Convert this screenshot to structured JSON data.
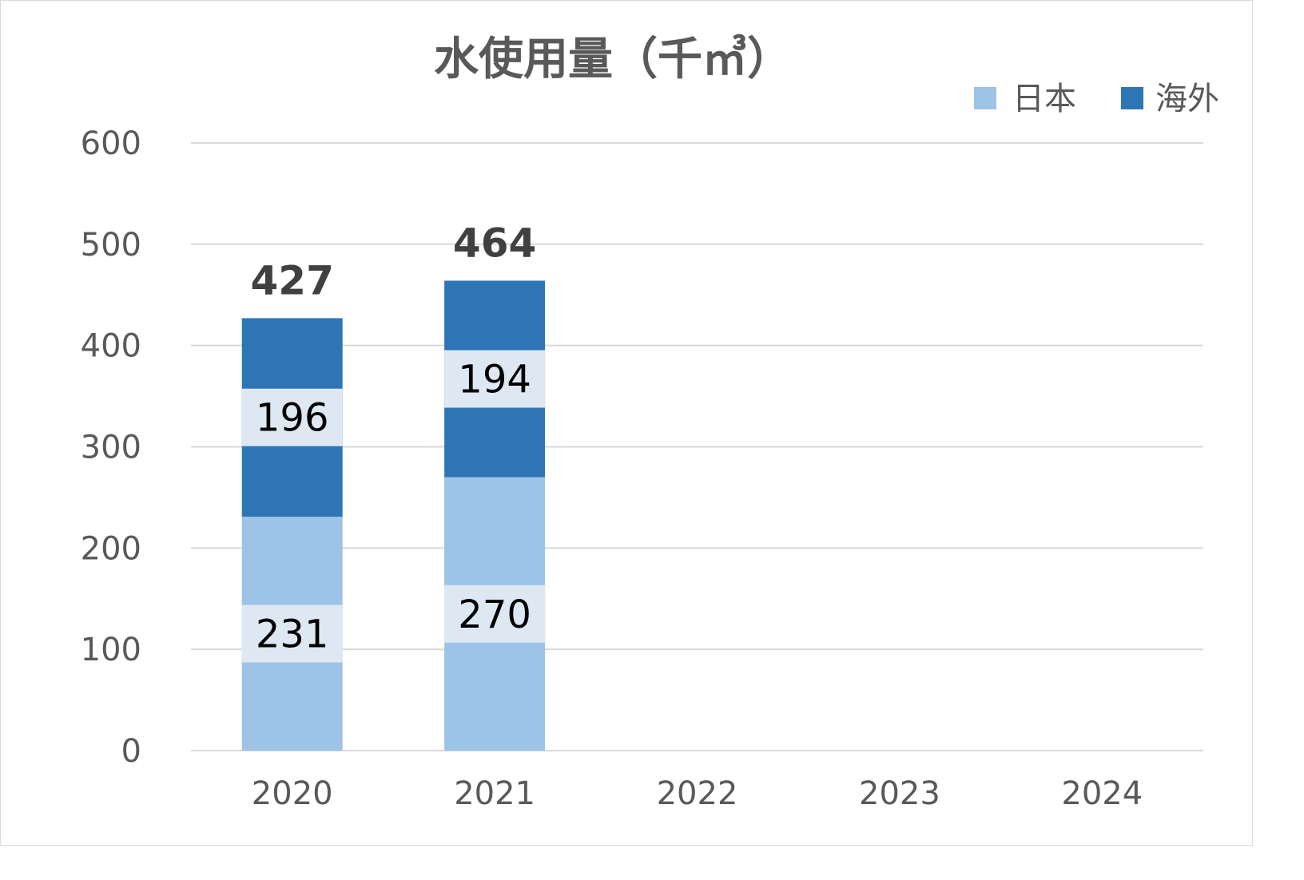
{
  "chart_data": {
    "type": "bar",
    "stacked": true,
    "title": "水使用量（千㎥）",
    "categories": [
      "2020",
      "2021",
      "2022",
      "2023",
      "2024"
    ],
    "series": [
      {
        "name": "日本",
        "values": [
          231,
          270,
          null,
          null,
          null
        ],
        "color": "#9dc3e6"
      },
      {
        "name": "海外",
        "values": [
          196,
          194,
          null,
          null,
          null
        ],
        "color": "#2e75b6"
      }
    ],
    "totals": [
      427,
      464,
      null,
      null,
      null
    ],
    "yticks": [
      "0",
      "100",
      "200",
      "300",
      "400",
      "500",
      "600"
    ],
    "ylim": [
      0,
      600
    ],
    "grid": true,
    "legend": "top-right",
    "colors": {
      "gridline": "#d9d9d9",
      "label_box": "#dde8f3",
      "text": "#595959"
    }
  }
}
